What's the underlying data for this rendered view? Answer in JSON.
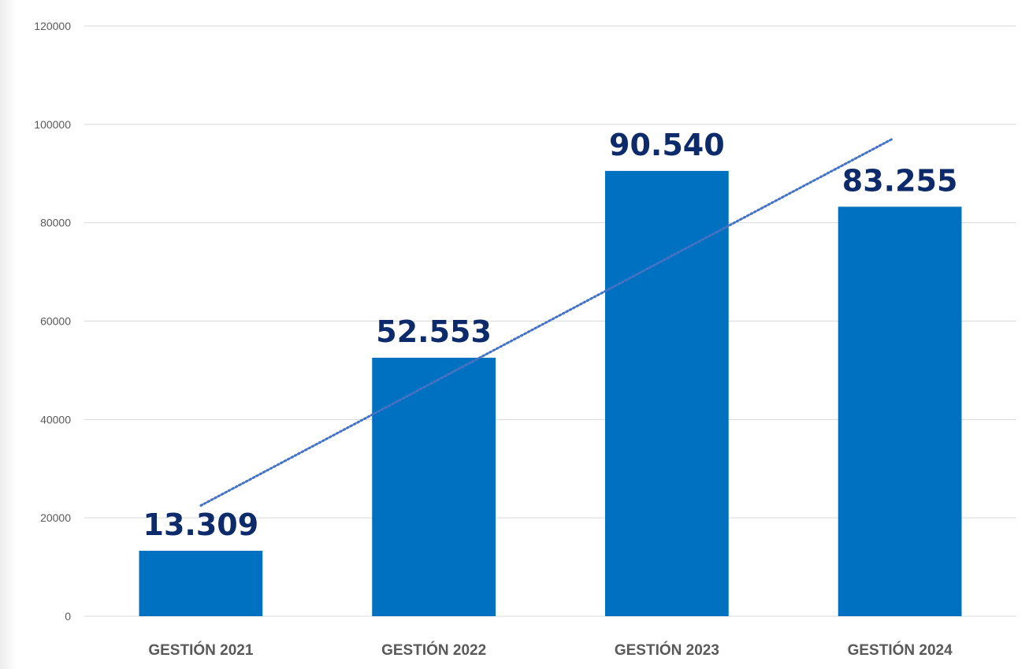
{
  "chart_data": {
    "type": "bar",
    "title": "",
    "xlabel": "",
    "ylabel": "",
    "categories": [
      "GESTIÓN 2021",
      "GESTIÓN 2022",
      "GESTIÓN 2023",
      "GESTIÓN 2024"
    ],
    "values": [
      13309,
      52553,
      90540,
      83255
    ],
    "data_labels": [
      "13.309",
      "52.553",
      "90.540",
      "83.255"
    ],
    "ylim": [
      0,
      120000
    ],
    "yticks": [
      0,
      20000,
      40000,
      60000,
      80000,
      100000,
      120000
    ],
    "ytick_labels": [
      "0",
      "20000",
      "40000",
      "60000",
      "80000",
      "100000",
      "120000"
    ],
    "grid": true,
    "legend": "none",
    "trendline": {
      "type": "linear",
      "style": "dotted",
      "start_value": 22500,
      "end_value": 97000
    },
    "colors": {
      "bar": "#0070c0",
      "data_label": "#0d2b6b",
      "trendline": "#4472c4",
      "grid": "#d9d9d9",
      "axis_text": "#595959"
    }
  }
}
